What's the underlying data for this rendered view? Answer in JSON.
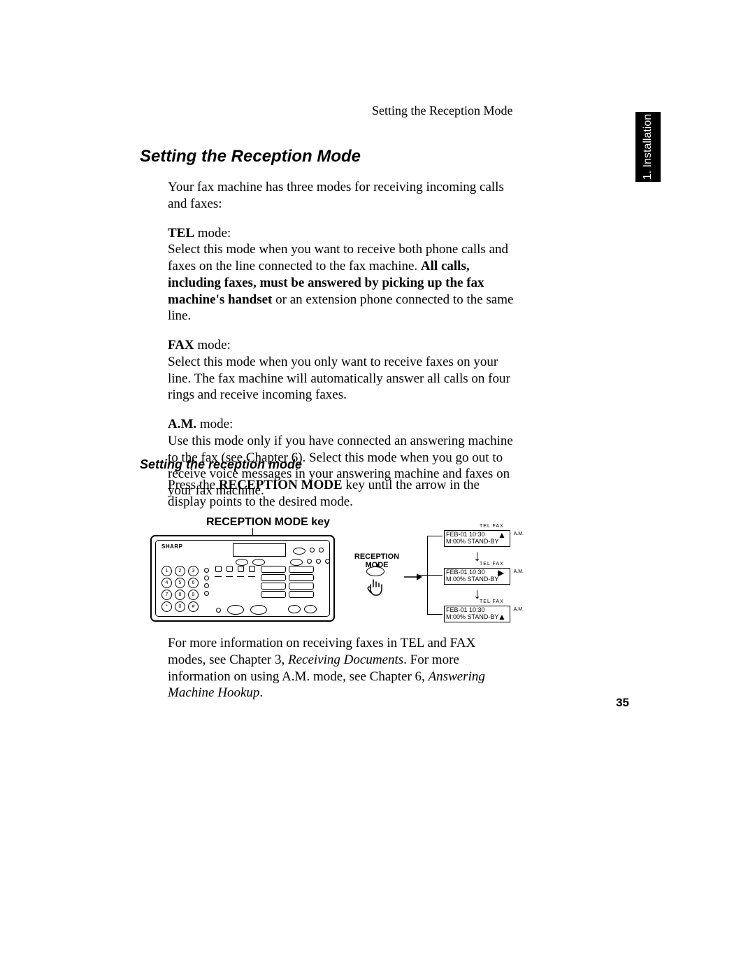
{
  "running_header": "Setting the Reception Mode",
  "tab": "1. Installation",
  "title": "Setting the Reception Mode",
  "intro": "Your fax machine has three modes for receiving incoming calls and faxes:",
  "tel": {
    "label": "TEL",
    "suffix": " mode:",
    "line1": "Select this mode when you want to receive both phone calls and faxes on the line connected to the fax machine. ",
    "bold": "All calls, including faxes, must be answered by picking up the fax machine's handset",
    "line2": " or an extension phone connected to the same line."
  },
  "fax": {
    "label": "FAX",
    "suffix": " mode:",
    "text": "Select this mode when you only want to receive faxes on your line. The fax machine will automatically answer all calls on four rings and receive incoming faxes."
  },
  "am": {
    "label": "A.M.",
    "suffix": " mode:",
    "text": "Use this mode only if you have connected an answering machine to the fax (see Chapter 6). Select this mode when you go out to receive voice messages in your answering machine and faxes on your fax machine."
  },
  "subheading": "Setting the reception mode",
  "instruction": {
    "pre": "Press the ",
    "bold": "RECEPTION MODE",
    "post": " key until the arrow in the display points to the desired mode."
  },
  "diagram": {
    "key_title": "RECEPTION MODE key",
    "reception_label_l1": "RECEPTION",
    "reception_label_l2": "MODE",
    "brand": "SHARP",
    "keypad": [
      "1",
      "2",
      "3",
      "4",
      "5",
      "6",
      "7",
      "8",
      "9",
      "*",
      "0",
      "#"
    ],
    "toplabels": "TEL  FAX",
    "am_side": "A.M.",
    "screen_line1": "FEB-01 10:30",
    "screen_line2": "M:00% STAND-BY"
  },
  "footer": {
    "pre": "For more information on receiving faxes in TEL and FAX modes, see Chapter 3, ",
    "ital1": "Receiving Documents",
    "mid": ". For more information on using A.M. mode, see Chapter 6, ",
    "ital2": "Answering Machine Hookup",
    "post": "."
  },
  "page_number": "35",
  "colors": {
    "text": "#000000",
    "bg": "#ffffff"
  }
}
